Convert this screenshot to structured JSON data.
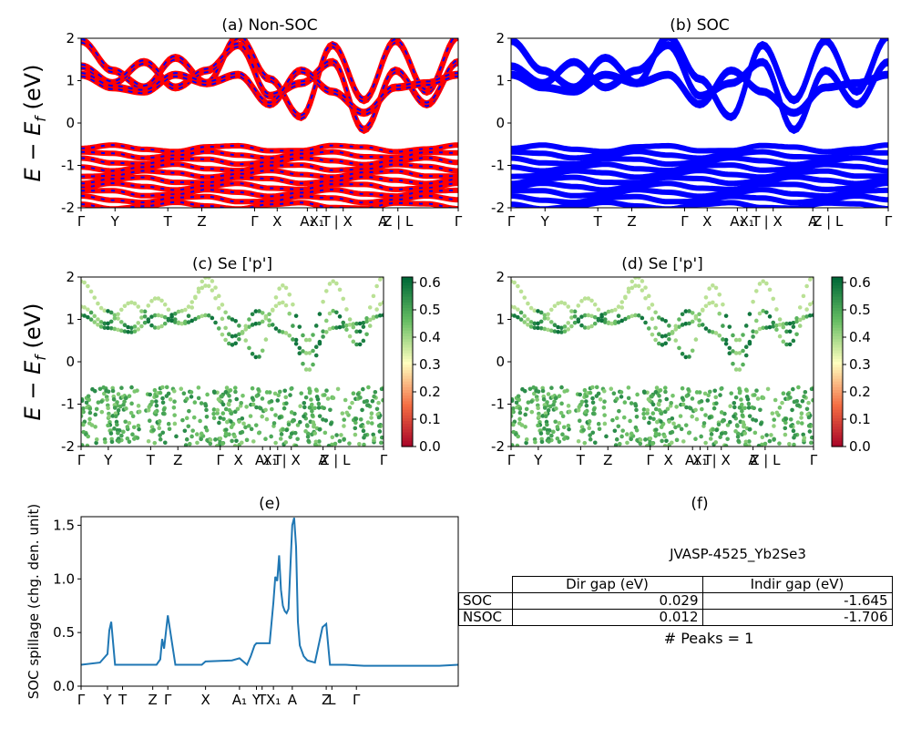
{
  "chart_data": [
    {
      "id": "a",
      "type": "line",
      "title": "(a) Non-SOC",
      "ylabel": "E - E_f (eV)",
      "ylim": [
        -2,
        2
      ],
      "yticks": [
        -2,
        -1,
        0,
        1,
        2
      ],
      "xtick_labels": [
        "Γ",
        "Y",
        "T",
        "Z",
        "Γ",
        "X",
        "A₁",
        "X₁",
        "T",
        "| X",
        "A",
        "Z | L",
        "Γ"
      ],
      "colors": {
        "up": "#0000ff",
        "down": "#ff0000"
      },
      "series": [
        {
          "values": [
            1.3,
            1.1,
            0.8,
            1.0,
            1.3,
            0.8,
            1.1,
            1.8,
            1.0,
            0.7,
            1.3
          ]
        },
        {
          "values": [
            -0.7,
            -0.9,
            -0.8,
            -0.65,
            -0.9,
            -0.7,
            -0.6,
            -0.8,
            -0.7,
            -0.6,
            -0.7
          ]
        },
        {
          "values": [
            -1.2,
            -1.4,
            -1.1,
            -1.3,
            -1.5,
            -1.2,
            -1.1,
            -1.4,
            -1.2,
            -1.0,
            -1.3
          ]
        },
        {
          "values": [
            -1.7,
            -1.8,
            -1.6,
            -1.9,
            -1.7,
            -1.6,
            -1.8,
            -1.7,
            -1.5,
            -1.7,
            -1.8
          ]
        }
      ]
    },
    {
      "id": "b",
      "type": "line",
      "title": "(b) SOC",
      "ylim": [
        -2,
        2
      ],
      "yticks": [
        -2,
        -1,
        0,
        1,
        2
      ],
      "xtick_labels": [
        "Γ",
        "Y",
        "T",
        "Z",
        "Γ",
        "X",
        "A₁",
        "X₁",
        "T",
        "| X",
        "A",
        "Z | L",
        "Γ"
      ],
      "colors": {
        "bands": "#0000ff"
      }
    },
    {
      "id": "c",
      "type": "scatter",
      "title": "(c)  Se ['p']",
      "ylabel": "E - E_f (eV)",
      "ylim": [
        -2,
        2
      ],
      "colorbar": {
        "ticks": [
          0.0,
          0.1,
          0.2,
          0.3,
          0.4,
          0.5,
          0.6
        ],
        "range": [
          0.0,
          0.62
        ]
      },
      "xtick_labels": [
        "Γ",
        "Y",
        "T",
        "Z",
        "Γ",
        "X",
        "A₁",
        "X₁",
        "T",
        "| X",
        "A",
        "Z | L",
        "Γ"
      ]
    },
    {
      "id": "d",
      "type": "scatter",
      "title": "(d) Se ['p']",
      "ylim": [
        -2,
        2
      ],
      "colorbar": {
        "ticks": [
          0.0,
          0.1,
          0.2,
          0.3,
          0.4,
          0.5,
          0.6
        ],
        "range": [
          0.0,
          0.62
        ]
      },
      "xtick_labels": [
        "Γ",
        "Y",
        "T",
        "Z",
        "Γ",
        "X",
        "A₁",
        "X₁",
        "T",
        "| X",
        "A",
        "Z | L",
        "Γ"
      ]
    },
    {
      "id": "e",
      "type": "line",
      "title": "(e)",
      "ylabel": "SOC spillage (chg. den. unit)",
      "ylim": [
        0,
        1.58
      ],
      "yticks": [
        0.0,
        0.5,
        1.0,
        1.5
      ],
      "xtick_labels": [
        "Γ",
        "Y",
        "T",
        "Z",
        "Γ",
        "X",
        "A₁",
        "Y",
        "T",
        "X₁",
        "A",
        "Z",
        "L",
        "Γ"
      ],
      "color": "#1f77b4",
      "x": [
        0,
        0.05,
        0.07,
        0.075,
        0.08,
        0.09,
        0.1,
        0.15,
        0.2,
        0.21,
        0.215,
        0.22,
        0.23,
        0.25,
        0.3,
        0.32,
        0.33,
        0.4,
        0.42,
        0.44,
        0.45,
        0.46,
        0.465,
        0.47,
        0.5,
        0.51,
        0.515,
        0.52,
        0.525,
        0.53,
        0.535,
        0.54,
        0.545,
        0.55,
        0.56,
        0.565,
        0.57,
        0.575,
        0.58,
        0.59,
        0.6,
        0.62,
        0.64,
        0.65,
        0.66,
        0.68,
        0.7,
        0.75,
        0.8,
        0.9,
        0.95,
        1.0
      ],
      "y": [
        0.2,
        0.22,
        0.3,
        0.52,
        0.6,
        0.2,
        0.2,
        0.2,
        0.2,
        0.25,
        0.44,
        0.35,
        0.66,
        0.2,
        0.2,
        0.2,
        0.23,
        0.24,
        0.26,
        0.2,
        0.28,
        0.38,
        0.4,
        0.4,
        0.4,
        0.78,
        1.02,
        0.98,
        1.22,
        0.9,
        0.75,
        0.7,
        0.68,
        0.72,
        1.5,
        1.57,
        1.3,
        0.6,
        0.38,
        0.28,
        0.24,
        0.22,
        0.55,
        0.58,
        0.2,
        0.2,
        0.2,
        0.19,
        0.19,
        0.19,
        0.19,
        0.2
      ]
    }
  ],
  "panel_f": {
    "title": "(f)",
    "material": "JVASP-4525_Yb2Se3",
    "columns": [
      "Dir gap (eV)",
      "Indir gap (eV)"
    ],
    "rows": [
      {
        "label": "SOC",
        "dir": "0.029",
        "indir": "-1.645"
      },
      {
        "label": "NSOC",
        "dir": "0.012",
        "indir": "-1.706"
      }
    ],
    "peaks": "# Peaks = 1"
  }
}
